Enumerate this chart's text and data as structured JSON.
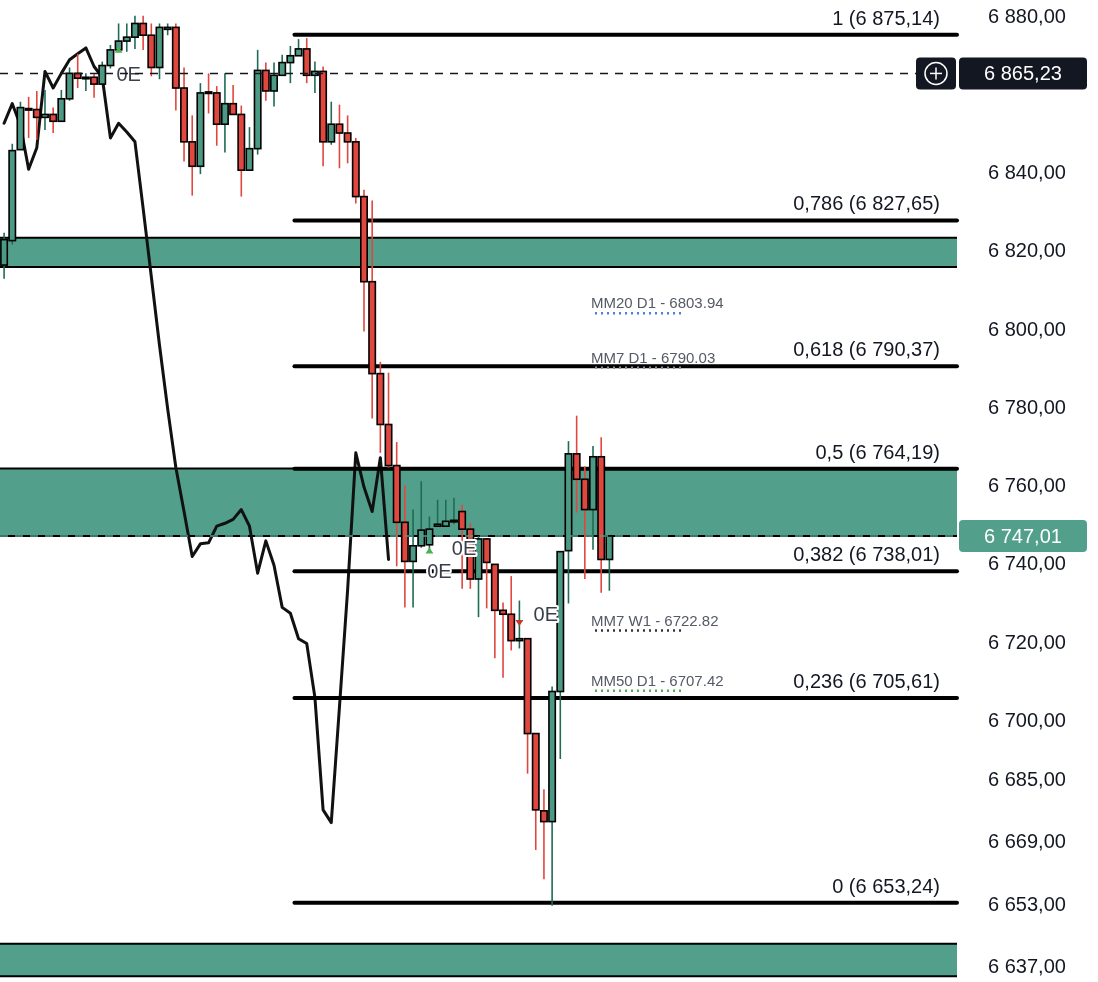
{
  "chart_data": {
    "type": "candlestick",
    "categories": [
      null,
      null,
      null,
      null,
      null,
      null,
      null,
      null,
      null,
      null,
      null,
      null,
      null,
      null,
      null,
      null,
      null,
      null,
      null,
      null,
      null,
      null,
      null,
      null,
      null,
      null,
      null,
      null,
      null,
      null,
      null,
      null,
      null,
      null,
      null,
      null,
      null,
      null,
      null,
      null,
      null,
      null,
      null,
      null,
      null,
      null,
      null,
      null,
      null,
      null,
      null,
      null,
      null,
      null,
      null,
      null,
      null,
      null,
      null,
      null,
      null,
      null,
      null,
      null,
      null,
      null,
      null,
      null,
      null,
      null,
      null,
      null,
      null,
      null,
      null,
      null,
      null,
      null,
      null,
      null,
      null,
      null,
      null,
      null,
      null,
      null,
      null,
      null,
      null,
      null,
      null,
      null,
      null,
      null,
      null,
      null,
      null,
      null,
      null,
      null,
      null,
      null,
      null,
      null,
      null,
      null,
      null,
      null,
      null,
      null,
      null,
      null,
      null,
      null,
      null,
      null,
      null
    ],
    "ohlc": [
      [
        6816.25,
        6824.5,
        6812.75,
        6822.75
      ],
      [
        6822.5,
        6847.25,
        6821.5,
        6845.5
      ],
      [
        6845.75,
        6858,
        6845.75,
        6856.5
      ],
      [
        6856.25,
        6859.25,
        6848.75,
        6856
      ],
      [
        6856,
        6860.75,
        6848.25,
        6854
      ],
      [
        6854,
        6861,
        6850.75,
        6854.75
      ],
      [
        6854.75,
        6856.5,
        6850,
        6853
      ],
      [
        6853,
        6861,
        6853,
        6858.75
      ],
      [
        6858.75,
        6866.75,
        6858.25,
        6865.25
      ],
      [
        6865.25,
        6870.25,
        6861.5,
        6864
      ],
      [
        6864,
        6865.25,
        6860.75,
        6864.25
      ],
      [
        6864.25,
        6865,
        6859,
        6862.5
      ],
      [
        6862.5,
        6868.25,
        6862.5,
        6867.25
      ],
      [
        6867.25,
        6872.5,
        6866.5,
        6871.25
      ],
      [
        6871.25,
        6878,
        6870.75,
        6873.5
      ],
      [
        6873.5,
        6878,
        6870.75,
        6874.5
      ],
      [
        6874.5,
        6880,
        6871.5,
        6878
      ],
      [
        6878,
        6880,
        6871.25,
        6875
      ],
      [
        6875,
        6878,
        6864.5,
        6866.75
      ],
      [
        6866.75,
        6878,
        6863.75,
        6877
      ],
      [
        6876.5,
        6878,
        6875,
        6877
      ],
      [
        6877,
        6878,
        6855.75,
        6861.5
      ],
      [
        6861.5,
        6866.75,
        6842.75,
        6847.75
      ],
      [
        6847.75,
        6854.5,
        6834,
        6841.5
      ],
      [
        6841.5,
        6862.75,
        6839.5,
        6860.25
      ],
      [
        6860.5,
        6865.25,
        6855,
        6860.25
      ],
      [
        6860.25,
        6862,
        6846.75,
        6852.25
      ],
      [
        6852.25,
        6865.25,
        6845,
        6857.5
      ],
      [
        6857.5,
        6862.25,
        6854.75,
        6854.75
      ],
      [
        6854.75,
        6857,
        6833.75,
        6840.5
      ],
      [
        6840.5,
        6851.5,
        6840.5,
        6846
      ],
      [
        6846,
        6871.25,
        6844.5,
        6866
      ],
      [
        6866,
        6868,
        6858.25,
        6860.75
      ],
      [
        6860.75,
        6868,
        6856.75,
        6864.75
      ],
      [
        6864.75,
        6870,
        6864.75,
        6868
      ],
      [
        6868,
        6872.25,
        6862.75,
        6869.75
      ],
      [
        6869.75,
        6874,
        6869.75,
        6871.5
      ],
      [
        6871.5,
        6874.25,
        6862.75,
        6864.75
      ],
      [
        6864.75,
        6868.25,
        6860.25,
        6865.75
      ],
      [
        6865.75,
        6867,
        6841.5,
        6847.75
      ],
      [
        6847.75,
        6858,
        6847,
        6852.25
      ],
      [
        6852.25,
        6857.25,
        6841,
        6850
      ],
      [
        6850,
        6854.5,
        6842.25,
        6847.75
      ],
      [
        6847.75,
        6848.75,
        6832,
        6833.75
      ],
      [
        6833.75,
        6835.5,
        6799.25,
        6812
      ],
      [
        6812,
        6832.75,
        6777,
        6788.5
      ],
      [
        6788.5,
        6791.5,
        6768.25,
        6775.5
      ],
      [
        6775.5,
        6788.75,
        6764.5,
        6765
      ],
      [
        6765,
        6771,
        6739.25,
        6750.5
      ],
      [
        6750.5,
        6760,
        6728.75,
        6740.5
      ],
      [
        6740.5,
        6753.75,
        6728.75,
        6744.5
      ],
      [
        6744.5,
        6761,
        6744,
        6748.5
      ],
      [
        6744.75,
        6752,
        6743.5,
        6748.75
      ],
      [
        6749.5,
        6756.25,
        6749.5,
        6750
      ],
      [
        6749.5,
        6756.25,
        6749.5,
        6750.75
      ],
      [
        6750.75,
        6756.75,
        6750,
        6751
      ],
      [
        6753.25,
        6755,
        6733.5,
        6748.75
      ],
      [
        6748.75,
        6750.25,
        6733.5,
        6736
      ],
      [
        6736,
        6747,
        6726.25,
        6746.25
      ],
      [
        6746.25,
        6746.5,
        6728.5,
        6740.25
      ],
      [
        6739.75,
        6739.75,
        6715.75,
        6728
      ],
      [
        6728,
        6730,
        6710.75,
        6727
      ],
      [
        6727,
        6736.75,
        6717.75,
        6720.25
      ],
      [
        6720.25,
        6730.5,
        6718.25,
        6720.75
      ],
      [
        6720.75,
        6720.75,
        6686.25,
        6696.5
      ],
      [
        6696.5,
        6696.5,
        6666.75,
        6677
      ],
      [
        6676.75,
        6682.25,
        6659.25,
        6674
      ],
      [
        6674,
        6708.5,
        6652.5,
        6707.25
      ],
      [
        6707.25,
        6743,
        6690,
        6743
      ],
      [
        6743.25,
        6771.25,
        6729.75,
        6768
      ],
      [
        6768,
        6777.75,
        6753,
        6761.5
      ],
      [
        6761.5,
        6764.75,
        6736,
        6753.75
      ],
      [
        6753.75,
        6770,
        6743.5,
        6767.25
      ],
      [
        6767.25,
        6772.25,
        6732.5,
        6741
      ],
      [
        6741,
        6747,
        6733,
        6747
      ],
      null,
      null,
      null,
      null,
      null,
      null,
      null,
      null,
      null,
      null,
      null,
      null,
      null,
      null,
      null,
      null,
      null,
      null,
      null,
      null,
      null,
      null,
      null,
      null,
      null,
      null,
      null,
      null,
      null,
      null,
      null,
      null,
      null,
      null,
      null,
      null,
      null,
      null,
      null,
      null,
      null,
      null
    ],
    "series": [
      {
        "type": "line",
        "color": "#111111",
        "values": [
          6852.5,
          6857.5,
          6852,
          6840.75,
          6846.25,
          6865.75,
          6861.5,
          6865.25,
          6868.75,
          6870.25,
          6871.75,
          6867,
          6864.25,
          6848.75,
          6852.5,
          6850.25,
          6847.75,
          6830.75,
          6813.25,
          6795.75,
          6779.5,
          6764.5,
          6753.25,
          6741.75,
          6745,
          6745.25,
          6749.5,
          6750.25,
          6751.25,
          6753.75,
          6749.5,
          6737.5,
          6745.75,
          6739.5,
          6728.75,
          6727.25,
          6720.75,
          6719.5,
          6705.75,
          6677,
          6673.75,
          6703.25,
          6733.25,
          6768.25,
          6759.5,
          6753.25,
          6767,
          6741,
          null,
          null,
          null,
          null,
          null,
          null,
          null,
          null,
          null,
          null,
          null,
          null,
          null,
          null,
          null,
          null,
          null,
          null,
          null,
          null,
          null,
          null,
          null,
          null,
          null,
          null,
          null,
          null,
          null,
          null,
          null,
          null,
          null,
          null,
          null,
          null,
          null,
          null,
          null,
          null,
          null,
          null,
          null,
          null,
          null,
          null,
          null,
          null,
          null,
          null,
          null,
          null,
          null,
          null,
          null,
          null,
          null,
          null,
          null,
          null,
          null,
          null,
          null,
          null,
          null,
          null,
          null,
          null,
          null
        ]
      }
    ],
    "ylim": [
      6633,
      6884
    ],
    "yticks": [
      {
        "value": 6637,
        "label": "6 637,00"
      },
      {
        "value": 6653,
        "label": "6 653,00"
      },
      {
        "value": 6669,
        "label": "6 669,00"
      },
      {
        "value": 6685,
        "label": "6 685,00"
      },
      {
        "value": 6700,
        "label": "6 700,00"
      },
      {
        "value": 6720,
        "label": "6 720,00"
      },
      {
        "value": 6740,
        "label": "6 740,00"
      },
      {
        "value": 6760,
        "label": "6 760,00"
      },
      {
        "value": 6780,
        "label": "6 780,00"
      },
      {
        "value": 6800,
        "label": "6 800,00"
      },
      {
        "value": 6820,
        "label": "6 820,00"
      },
      {
        "value": 6840,
        "label": "6 840,00"
      },
      {
        "value": 6880,
        "label": "6 880,00"
      }
    ],
    "tick_labels": "y",
    "bands": [
      {
        "axis": "y",
        "from": 6815.75,
        "to": 6823.25,
        "color": "#52a08b"
      },
      {
        "axis": "y",
        "from": 6747,
        "to": 6764.25,
        "color": "#52a08b"
      },
      {
        "axis": "y",
        "from": 6634.5,
        "to": 6642.75,
        "color": "#52a08b"
      }
    ],
    "ref_lines": [
      {
        "axis": "y",
        "value": 6875.14,
        "label": "1 (6 875,14)",
        "line_style": "solid",
        "color": "#000000"
      },
      {
        "axis": "y",
        "value": 6827.65,
        "label": "0,786 (6 827,65)",
        "line_style": "solid",
        "color": "#000000"
      },
      {
        "axis": "y",
        "value": 6790.37,
        "label": "0,618 (6 790,37)",
        "line_style": "solid",
        "color": "#000000"
      },
      {
        "axis": "y",
        "value": 6764.19,
        "label": "0,5 (6 764,19)",
        "line_style": "solid",
        "color": "#000000"
      },
      {
        "axis": "y",
        "value": 6738.01,
        "label": "0,382 (6 738,01)",
        "line_style": "solid",
        "color": "#000000"
      },
      {
        "axis": "y",
        "value": 6705.61,
        "label": "0,236 (6 705,61)",
        "line_style": "solid",
        "color": "#000000"
      },
      {
        "axis": "y",
        "value": 6653.24,
        "label": "0 (6 653,24)",
        "line_style": "solid",
        "color": "#000000"
      },
      {
        "axis": "y",
        "value": 6803.94,
        "label": "MM20 D1 - 6803.94",
        "line_style": "dotted",
        "color": "#4a7cf0"
      },
      {
        "axis": "y",
        "value": 6790.03,
        "label": "MM7 D1 - 6790.03",
        "line_style": "dotted",
        "color": "#8a8f99"
      },
      {
        "axis": "y",
        "value": 6722.82,
        "label": "MM7 W1 - 6722.82",
        "line_style": "dotted",
        "color": "#333333"
      },
      {
        "axis": "y",
        "value": 6707.42,
        "label": "MM50 D1 - 6707.42",
        "line_style": "dotted",
        "color": "#4caf50"
      },
      {
        "axis": "y",
        "value": 6865.23,
        "label": "6 865,23",
        "line_style": "dashed",
        "color": "#131722"
      },
      {
        "axis": "y",
        "value": 6747.01,
        "label": "6 747,01",
        "line_style": "dashed",
        "color": "#52a08b"
      }
    ],
    "annotations": [
      "0E",
      "0E",
      "0E",
      "0E"
    ]
  }
}
